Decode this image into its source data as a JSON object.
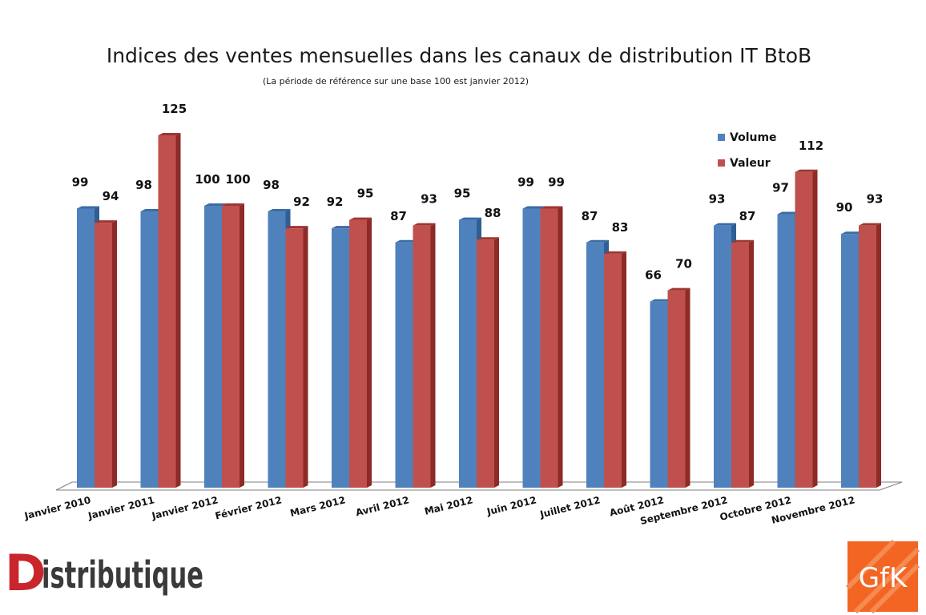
{
  "chart_data": {
    "type": "bar",
    "title": "Indices des ventes mensuelles dans les canaux de distribution IT BtoB",
    "subtitle": "(La période de référence sur une base 100 est janvier 2012)",
    "categories": [
      "Janvier 2010",
      "Janvier 2011",
      "Janvier 2012",
      "Février 2012",
      "Mars 2012",
      "Avril 2012",
      "Mai 2012",
      "Juin 2012",
      "Juillet 2012",
      "Août 2012",
      "Septembre 2012",
      "Octobre 2012",
      "Novembre 2012"
    ],
    "series": [
      {
        "name": "Volume",
        "color": "#4f81bd",
        "values": [
          99,
          98,
          100,
          98,
          92,
          87,
          95,
          99,
          87,
          66,
          93,
          97,
          90
        ]
      },
      {
        "name": "Valeur",
        "color": "#c0504d",
        "values": [
          94,
          125,
          100,
          92,
          95,
          93,
          88,
          99,
          83,
          70,
          87,
          112,
          93
        ]
      }
    ],
    "ylim": [
      0,
      125
    ],
    "grid": false,
    "legend": "top-right",
    "style": "3d-clustered-column"
  },
  "logos": {
    "left": {
      "text": "Distributique",
      "first_letter": "D",
      "rest": "istributique"
    },
    "right": {
      "text": "GfK",
      "color": "#f26522"
    }
  }
}
